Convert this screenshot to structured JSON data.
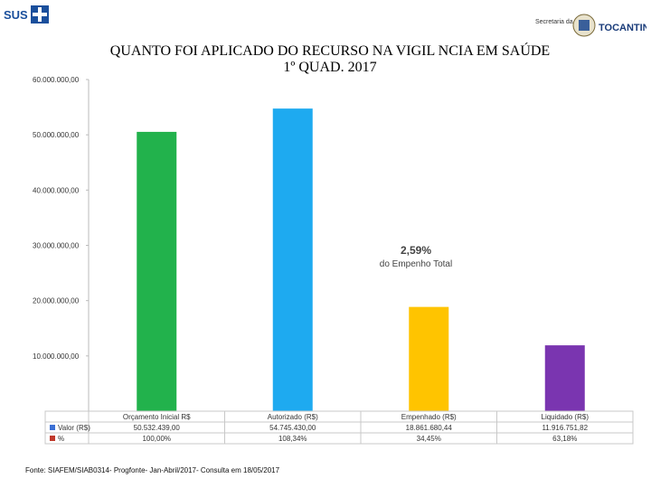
{
  "header": {
    "left_logo_text": "SUS",
    "right_logo_small_text": "Secretaria da Saúde",
    "right_logo_name": "TOCANTINS"
  },
  "title_line1": "QUANTO FOI APLICADO DO RECURSO NA VIGIL NCIA EM SAÚDE",
  "title_line2": "1º QUAD. 2017",
  "annotation": {
    "value": "2,59%",
    "text": "do Empenho Total"
  },
  "source": "Fonte: SIAFEM/SIAB0314- Progfonte- Jan-Abril/2017- Consulta em 18/05/2017",
  "chart_data": {
    "type": "bar",
    "categories": [
      "Orçamento Inicial R$",
      "Autorizado (R$)",
      "Empenhado (R$)",
      "Liquidado (R$)"
    ],
    "values": [
      50532439.0,
      54745430.0,
      18861680.44,
      11916751.82
    ],
    "ylim": [
      0,
      60000000
    ],
    "yticks": [
      "60.000.000,00",
      "50.000.000,00",
      "40.000.000,00",
      "30.000.000,00",
      "20.000.000,00",
      "10.000.000,00"
    ],
    "bar_colors": [
      "#22b24c",
      "#1eaaf0",
      "#ffc400",
      "#7a35b0"
    ],
    "table": {
      "rows": [
        {
          "label": "Valor (R$)",
          "marker_color": "#3b6fd4",
          "cells": [
            "50.532.439,00",
            "54.745.430,00",
            "18.861.680,44",
            "11.916.751,82"
          ]
        },
        {
          "label": "%",
          "marker_color": "#c0392b",
          "cells": [
            "100,00%",
            "108,34%",
            "34,45%",
            "63,18%"
          ]
        }
      ]
    }
  }
}
